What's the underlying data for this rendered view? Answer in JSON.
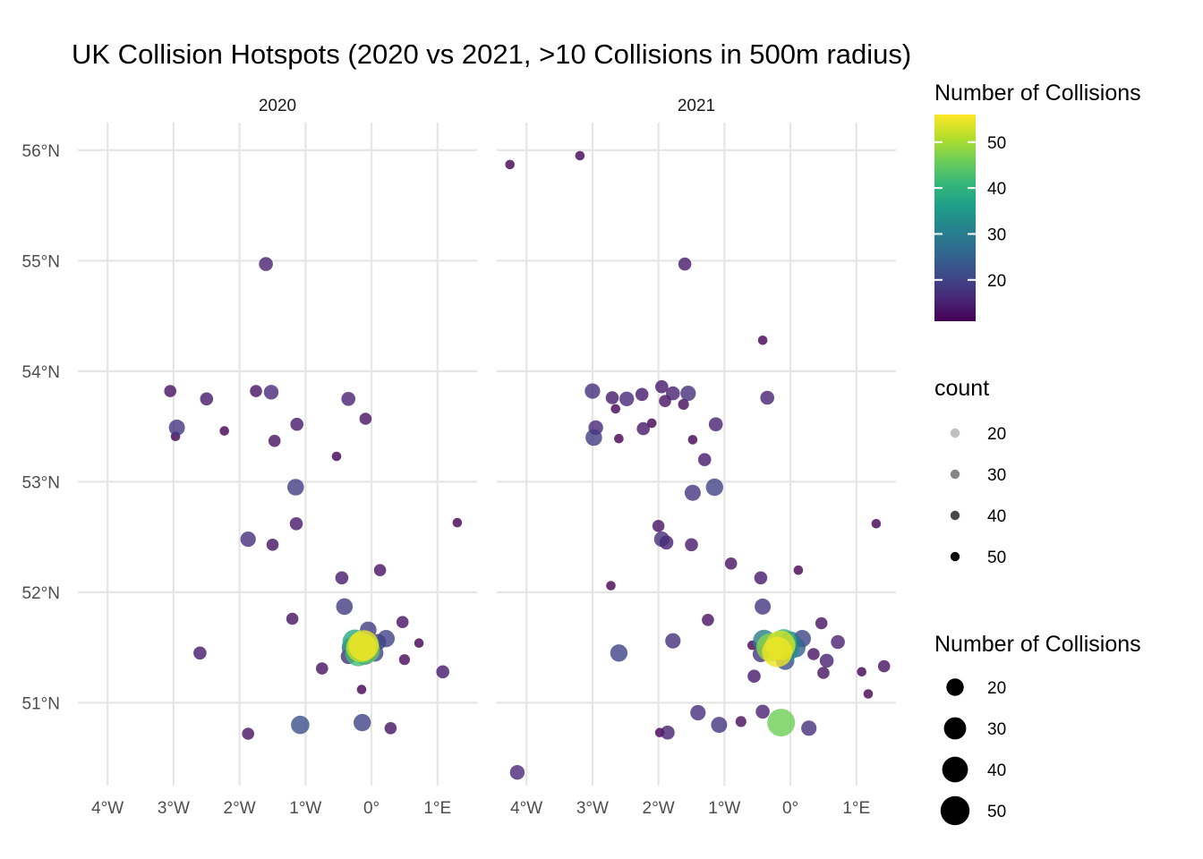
{
  "chart_data": {
    "type": "scatter",
    "title": "UK Collision Hotspots (2020 vs 2021, >10 Collisions in 500m radius)",
    "xlabel": "",
    "ylabel": "",
    "x_ticks": [
      {
        "value": -4,
        "label": "4°W"
      },
      {
        "value": -3,
        "label": "3°W"
      },
      {
        "value": -2,
        "label": "2°W"
      },
      {
        "value": -1,
        "label": "1°W"
      },
      {
        "value": 0,
        "label": "0°"
      },
      {
        "value": 1,
        "label": "1°E"
      }
    ],
    "y_ticks": [
      {
        "value": 56,
        "label": "56°N"
      },
      {
        "value": 55,
        "label": "55°N"
      },
      {
        "value": 54,
        "label": "54°N"
      },
      {
        "value": 53,
        "label": "53°N"
      },
      {
        "value": 52,
        "label": "52°N"
      },
      {
        "value": 51,
        "label": "51°N"
      }
    ],
    "xlim": [
      -4.45,
      1.6
    ],
    "ylim": [
      50.25,
      56.25
    ],
    "grid": true,
    "colormap": "viridis",
    "viridis_stops": [
      "#440154",
      "#482878",
      "#3e4a89",
      "#31688e",
      "#26828e",
      "#1f9e89",
      "#35b779",
      "#6ece58",
      "#b5de2b",
      "#fde725"
    ],
    "color_range": [
      11,
      56
    ],
    "point_opacity": 0.8,
    "legends": {
      "color": {
        "title": "Number of Collisions",
        "ticks": [
          {
            "value": 20,
            "label": "20"
          },
          {
            "value": 30,
            "label": "30"
          },
          {
            "value": 40,
            "label": "40"
          },
          {
            "value": 50,
            "label": "50"
          }
        ]
      },
      "alpha": {
        "title": "count",
        "items": [
          {
            "value": 20,
            "label": "20"
          },
          {
            "value": 30,
            "label": "30"
          },
          {
            "value": 40,
            "label": "40"
          },
          {
            "value": 50,
            "label": "50"
          }
        ]
      },
      "size": {
        "title": "Number of Collisions",
        "items": [
          {
            "value": 20,
            "label": "20"
          },
          {
            "value": 30,
            "label": "30"
          },
          {
            "value": 40,
            "label": "40"
          },
          {
            "value": 50,
            "label": "50"
          }
        ]
      }
    },
    "panels": [
      {
        "name": "2020",
        "points": [
          {
            "lon": -1.6,
            "lat": 54.97,
            "n": 15
          },
          {
            "lon": -3.05,
            "lat": 53.82,
            "n": 13
          },
          {
            "lon": -2.5,
            "lat": 53.75,
            "n": 14
          },
          {
            "lon": -1.75,
            "lat": 53.82,
            "n": 13
          },
          {
            "lon": -1.52,
            "lat": 53.81,
            "n": 16
          },
          {
            "lon": -0.35,
            "lat": 53.75,
            "n": 15
          },
          {
            "lon": -2.95,
            "lat": 53.49,
            "n": 18
          },
          {
            "lon": -2.97,
            "lat": 53.41,
            "n": 11
          },
          {
            "lon": -2.23,
            "lat": 53.46,
            "n": 11
          },
          {
            "lon": -1.13,
            "lat": 53.52,
            "n": 14
          },
          {
            "lon": -0.09,
            "lat": 53.57,
            "n": 13
          },
          {
            "lon": -1.47,
            "lat": 53.37,
            "n": 13
          },
          {
            "lon": -0.53,
            "lat": 53.23,
            "n": 11
          },
          {
            "lon": -1.15,
            "lat": 52.95,
            "n": 19
          },
          {
            "lon": 1.3,
            "lat": 52.63,
            "n": 11
          },
          {
            "lon": -1.14,
            "lat": 52.62,
            "n": 14
          },
          {
            "lon": -1.87,
            "lat": 52.48,
            "n": 17
          },
          {
            "lon": -1.5,
            "lat": 52.43,
            "n": 13
          },
          {
            "lon": 0.13,
            "lat": 52.2,
            "n": 13
          },
          {
            "lon": -0.45,
            "lat": 52.13,
            "n": 14
          },
          {
            "lon": -0.41,
            "lat": 51.87,
            "n": 19
          },
          {
            "lon": -1.2,
            "lat": 51.76,
            "n": 13
          },
          {
            "lon": 0.47,
            "lat": 51.73,
            "n": 13
          },
          {
            "lon": -0.05,
            "lat": 51.66,
            "n": 19
          },
          {
            "lon": 0.22,
            "lat": 51.58,
            "n": 20
          },
          {
            "lon": 0.72,
            "lat": 51.54,
            "n": 11
          },
          {
            "lon": -2.6,
            "lat": 51.45,
            "n": 14
          },
          {
            "lon": -0.3,
            "lat": 51.5,
            "n": 25
          },
          {
            "lon": -0.25,
            "lat": 51.55,
            "n": 38
          },
          {
            "lon": -0.2,
            "lat": 51.45,
            "n": 42
          },
          {
            "lon": -0.16,
            "lat": 51.5,
            "n": 52
          },
          {
            "lon": -0.12,
            "lat": 51.52,
            "n": 55
          },
          {
            "lon": -0.08,
            "lat": 51.48,
            "n": 45
          },
          {
            "lon": -0.05,
            "lat": 51.53,
            "n": 30
          },
          {
            "lon": -0.1,
            "lat": 51.44,
            "n": 28
          },
          {
            "lon": 0.0,
            "lat": 51.5,
            "n": 22
          },
          {
            "lon": 0.05,
            "lat": 51.45,
            "n": 20
          },
          {
            "lon": 0.1,
            "lat": 51.55,
            "n": 18
          },
          {
            "lon": -0.35,
            "lat": 51.42,
            "n": 17
          },
          {
            "lon": 0.5,
            "lat": 51.39,
            "n": 12
          },
          {
            "lon": -0.75,
            "lat": 51.31,
            "n": 13
          },
          {
            "lon": 1.08,
            "lat": 51.28,
            "n": 14
          },
          {
            "lon": -0.15,
            "lat": 51.12,
            "n": 11
          },
          {
            "lon": -1.08,
            "lat": 50.8,
            "n": 22
          },
          {
            "lon": -0.14,
            "lat": 50.82,
            "n": 20
          },
          {
            "lon": 0.29,
            "lat": 50.77,
            "n": 13
          },
          {
            "lon": -1.87,
            "lat": 50.72,
            "n": 13
          }
        ]
      },
      {
        "name": "2021",
        "points": [
          {
            "lon": -4.25,
            "lat": 55.87,
            "n": 11
          },
          {
            "lon": -3.19,
            "lat": 55.95,
            "n": 11
          },
          {
            "lon": -1.6,
            "lat": 54.97,
            "n": 14
          },
          {
            "lon": -0.42,
            "lat": 54.28,
            "n": 11
          },
          {
            "lon": -3.0,
            "lat": 53.82,
            "n": 17
          },
          {
            "lon": -2.7,
            "lat": 53.76,
            "n": 14
          },
          {
            "lon": -2.48,
            "lat": 53.75,
            "n": 16
          },
          {
            "lon": -2.25,
            "lat": 53.79,
            "n": 14
          },
          {
            "lon": -1.95,
            "lat": 53.86,
            "n": 14
          },
          {
            "lon": -1.78,
            "lat": 53.8,
            "n": 15
          },
          {
            "lon": -1.55,
            "lat": 53.8,
            "n": 17
          },
          {
            "lon": -1.9,
            "lat": 53.73,
            "n": 13
          },
          {
            "lon": -1.62,
            "lat": 53.7,
            "n": 12
          },
          {
            "lon": -0.35,
            "lat": 53.76,
            "n": 15
          },
          {
            "lon": -2.65,
            "lat": 53.66,
            "n": 11
          },
          {
            "lon": -2.95,
            "lat": 53.49,
            "n": 16
          },
          {
            "lon": -2.98,
            "lat": 53.4,
            "n": 19
          },
          {
            "lon": -2.23,
            "lat": 53.48,
            "n": 14
          },
          {
            "lon": -2.1,
            "lat": 53.53,
            "n": 11
          },
          {
            "lon": -1.13,
            "lat": 53.52,
            "n": 15
          },
          {
            "lon": -2.6,
            "lat": 53.39,
            "n": 11
          },
          {
            "lon": -1.48,
            "lat": 53.38,
            "n": 11
          },
          {
            "lon": -1.3,
            "lat": 53.2,
            "n": 14
          },
          {
            "lon": -1.48,
            "lat": 52.9,
            "n": 18
          },
          {
            "lon": -1.15,
            "lat": 52.95,
            "n": 20
          },
          {
            "lon": 1.3,
            "lat": 52.62,
            "n": 11
          },
          {
            "lon": -2.0,
            "lat": 52.6,
            "n": 13
          },
          {
            "lon": -1.95,
            "lat": 52.48,
            "n": 17
          },
          {
            "lon": -1.88,
            "lat": 52.45,
            "n": 15
          },
          {
            "lon": -1.5,
            "lat": 52.43,
            "n": 14
          },
          {
            "lon": -0.9,
            "lat": 52.26,
            "n": 13
          },
          {
            "lon": 0.12,
            "lat": 52.2,
            "n": 11
          },
          {
            "lon": -0.45,
            "lat": 52.13,
            "n": 14
          },
          {
            "lon": -2.72,
            "lat": 52.06,
            "n": 11
          },
          {
            "lon": -0.42,
            "lat": 51.87,
            "n": 18
          },
          {
            "lon": -1.25,
            "lat": 51.75,
            "n": 13
          },
          {
            "lon": 0.47,
            "lat": 51.72,
            "n": 13
          },
          {
            "lon": -1.78,
            "lat": 51.56,
            "n": 17
          },
          {
            "lon": 0.72,
            "lat": 51.55,
            "n": 15
          },
          {
            "lon": -2.6,
            "lat": 51.45,
            "n": 20
          },
          {
            "lon": -0.58,
            "lat": 51.52,
            "n": 11
          },
          {
            "lon": -0.4,
            "lat": 51.56,
            "n": 30
          },
          {
            "lon": -0.3,
            "lat": 51.5,
            "n": 48
          },
          {
            "lon": -0.2,
            "lat": 51.46,
            "n": 55
          },
          {
            "lon": -0.15,
            "lat": 51.52,
            "n": 53
          },
          {
            "lon": -0.1,
            "lat": 51.55,
            "n": 40
          },
          {
            "lon": -0.05,
            "lat": 51.48,
            "n": 33
          },
          {
            "lon": 0.0,
            "lat": 51.55,
            "n": 28
          },
          {
            "lon": 0.08,
            "lat": 51.5,
            "n": 25
          },
          {
            "lon": 0.18,
            "lat": 51.58,
            "n": 20
          },
          {
            "lon": -0.45,
            "lat": 51.44,
            "n": 18
          },
          {
            "lon": -0.08,
            "lat": 51.38,
            "n": 22
          },
          {
            "lon": 0.35,
            "lat": 51.44,
            "n": 13
          },
          {
            "lon": 0.55,
            "lat": 51.38,
            "n": 15
          },
          {
            "lon": 0.5,
            "lat": 51.27,
            "n": 13
          },
          {
            "lon": -0.55,
            "lat": 51.24,
            "n": 14
          },
          {
            "lon": 1.08,
            "lat": 51.28,
            "n": 11
          },
          {
            "lon": 1.42,
            "lat": 51.33,
            "n": 13
          },
          {
            "lon": 1.18,
            "lat": 51.08,
            "n": 11
          },
          {
            "lon": -1.4,
            "lat": 50.91,
            "n": 17
          },
          {
            "lon": -0.42,
            "lat": 50.92,
            "n": 15
          },
          {
            "lon": -1.08,
            "lat": 50.8,
            "n": 18
          },
          {
            "lon": -0.75,
            "lat": 50.83,
            "n": 12
          },
          {
            "lon": -0.14,
            "lat": 50.82,
            "n": 46
          },
          {
            "lon": 0.28,
            "lat": 50.77,
            "n": 17
          },
          {
            "lon": -1.86,
            "lat": 50.73,
            "n": 15
          },
          {
            "lon": -1.98,
            "lat": 50.73,
            "n": 11
          },
          {
            "lon": -4.14,
            "lat": 50.37,
            "n": 16
          }
        ]
      }
    ]
  }
}
